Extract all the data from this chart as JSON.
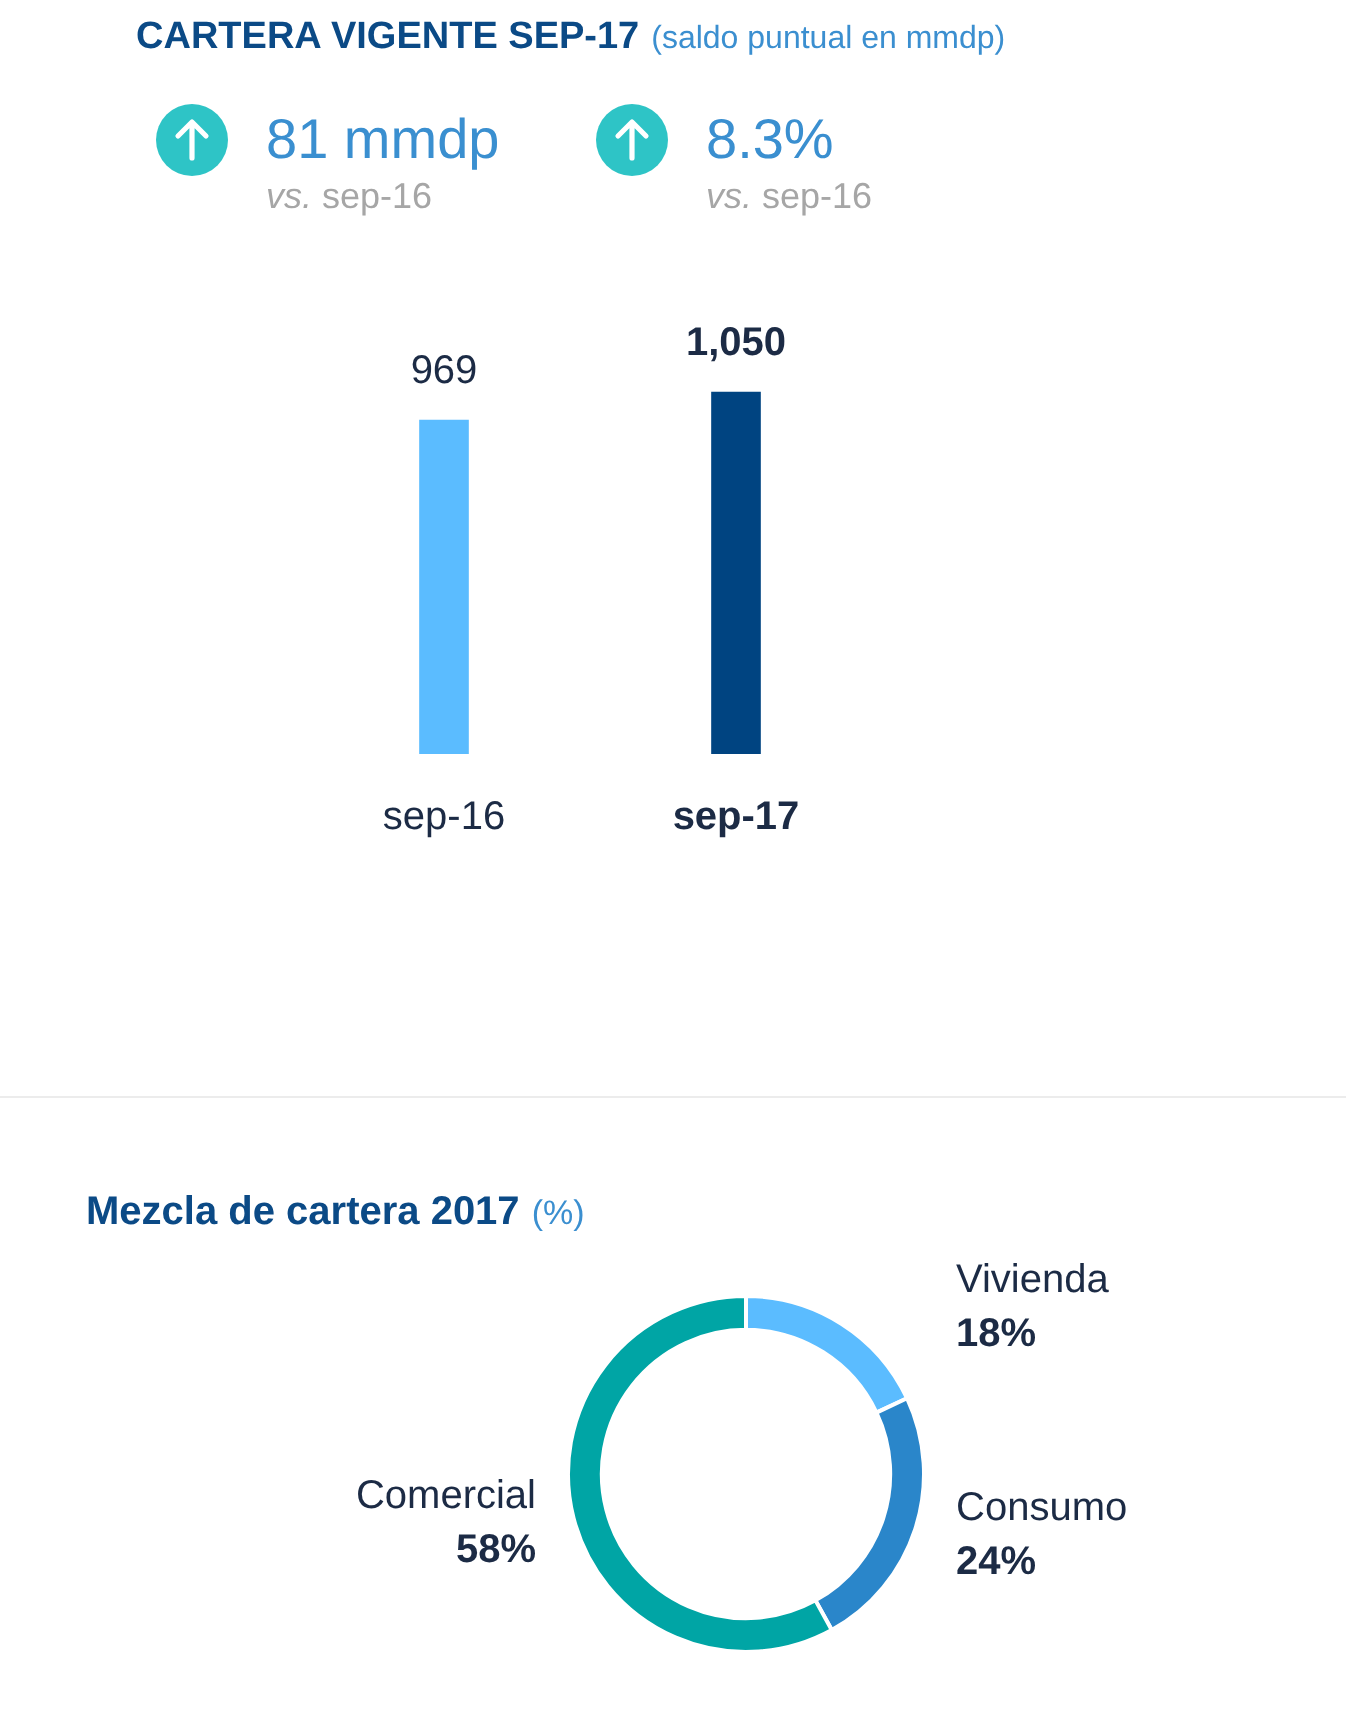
{
  "chart_data": [
    {
      "type": "bar",
      "title": "CARTERA VIGENTE SEP-17",
      "subtitle": "(saldo puntual en mmdp)",
      "annotations": [
        "81 mmdp",
        "vs. sep-16",
        "8.3%",
        "vs. sep-16"
      ],
      "categories": [
        "sep-16",
        "sep-17"
      ],
      "values": [
        969,
        1050
      ],
      "colors": [
        "#5bbcff",
        "#004481"
      ],
      "value_labels": [
        "969",
        "1,050"
      ],
      "tick_labels": "x"
    },
    {
      "type": "donut",
      "title": "Mezcla de cartera 2017",
      "subtitle": "(%)",
      "categories": [
        "Vivienda",
        "Consumo",
        "Comercial"
      ],
      "values": [
        18,
        24,
        58
      ],
      "colors": [
        "#5bbcff",
        "#2a86ca",
        "#00a5a5"
      ],
      "value_labels": [
        "18%",
        "24%",
        "58%"
      ]
    }
  ]
}
